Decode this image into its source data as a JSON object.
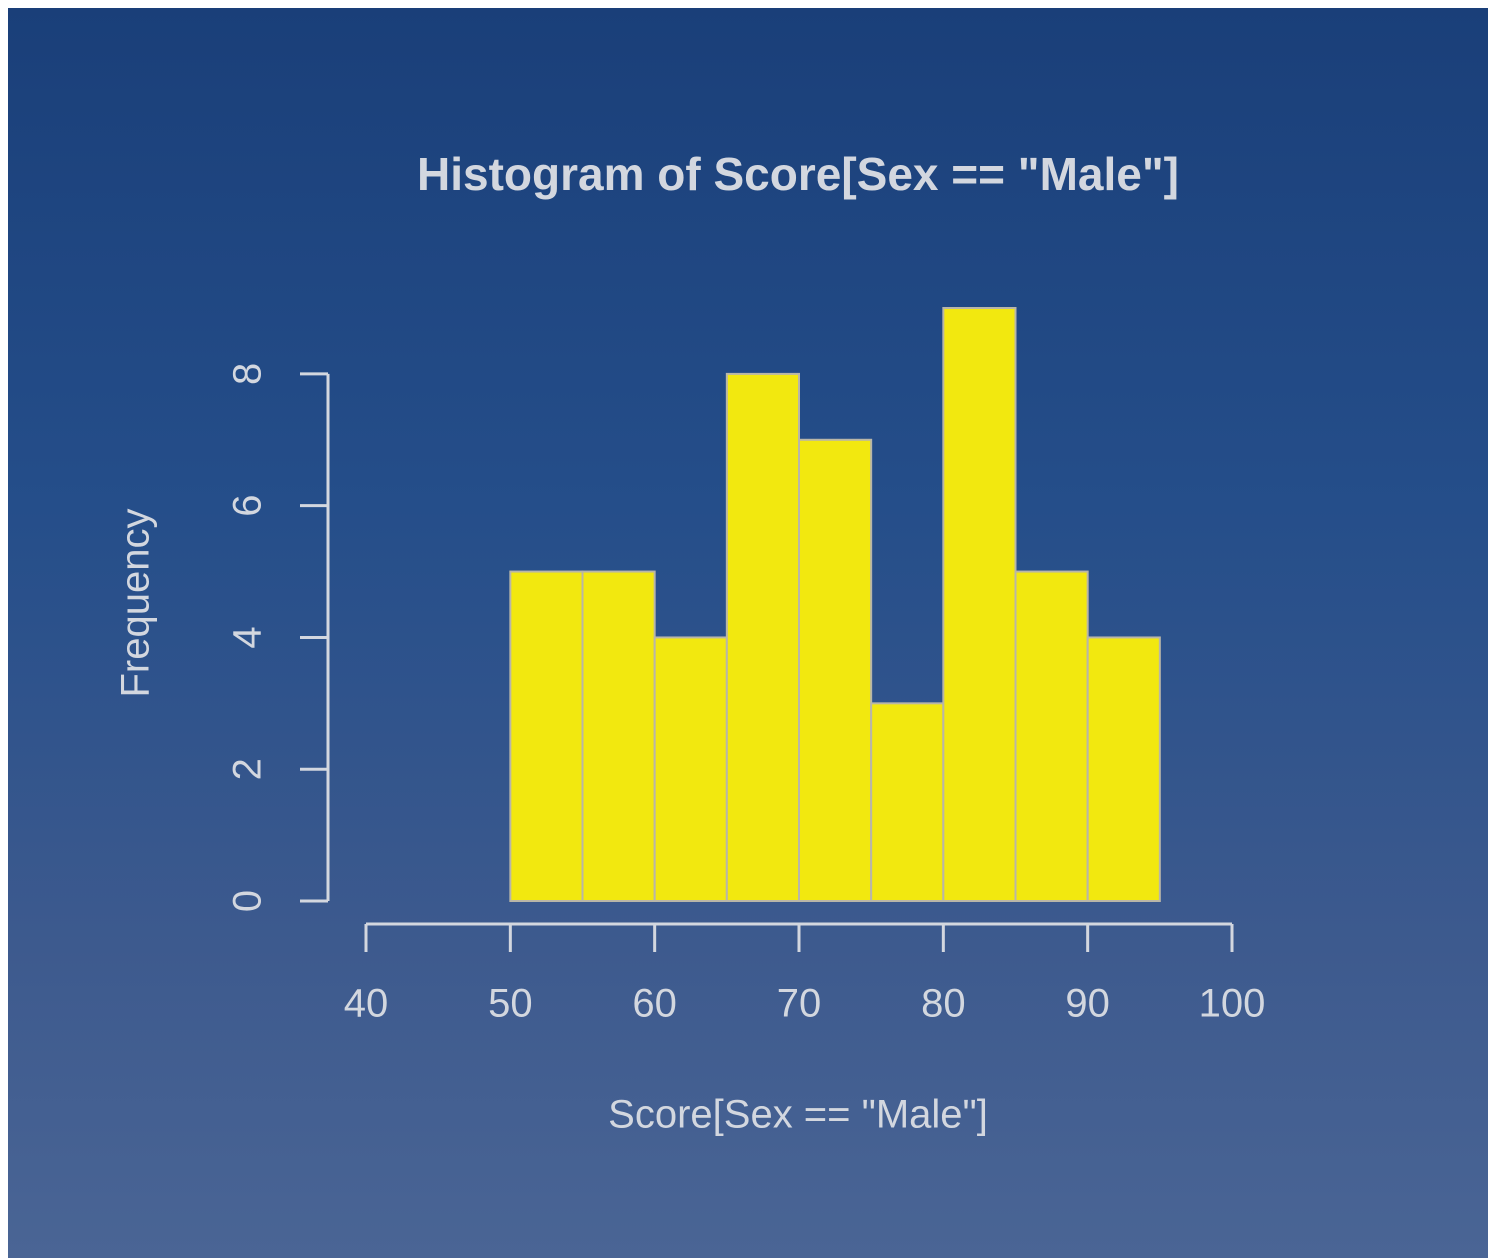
{
  "chart_data": {
    "type": "histogram",
    "title": "Histogram of Score[Sex == \"Male\"]",
    "x_label": "Score[Sex == \"Male\"]",
    "y_label": "Frequency",
    "bins": [
      50,
      55,
      60,
      65,
      70,
      75,
      80,
      85,
      90,
      95
    ],
    "values": [
      5,
      5,
      4,
      8,
      7,
      3,
      9,
      5,
      4
    ],
    "color": "#f2e80f",
    "xlim": [
      40,
      100
    ],
    "xticks": [
      40,
      50,
      60,
      70,
      80,
      90,
      100
    ],
    "ylim": [
      0,
      9
    ],
    "yticks": [
      0,
      2,
      4,
      6,
      8
    ]
  }
}
